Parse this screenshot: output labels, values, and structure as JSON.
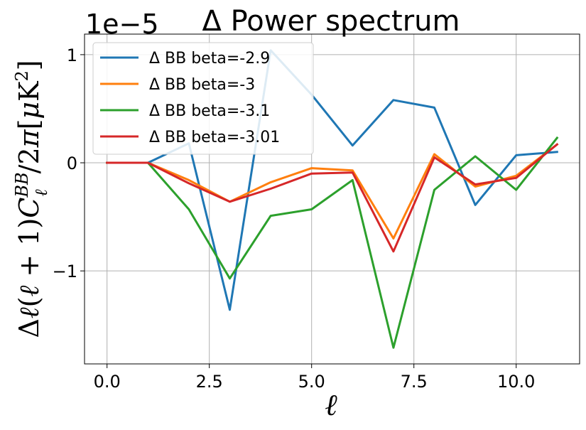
{
  "chart_data": {
    "type": "line",
    "title": "Δ Power spectrum",
    "xlabel": "ℓ",
    "ylabel": "Δℓ(ℓ + 1)C_ℓ^BB/2π[μK²]",
    "offset_text": "1e−5",
    "xlim": [
      -0.55,
      11.55
    ],
    "ylim": [
      -1.86,
      1.19
    ],
    "y_scale_exponent": -5,
    "x_ticks": [
      0.0,
      2.5,
      5.0,
      7.5,
      10.0
    ],
    "x_tick_labels": [
      "0.0",
      "2.5",
      "5.0",
      "7.5",
      "10.0"
    ],
    "y_ticks": [
      -1,
      0,
      1
    ],
    "y_tick_labels": [
      "−1",
      "0",
      "1"
    ],
    "grid": true,
    "legend_position": "upper-left",
    "x": [
      0,
      1,
      2,
      3,
      4,
      5,
      6,
      7,
      8,
      9,
      10,
      11
    ],
    "series": [
      {
        "name": "Δ BB beta=-2.9",
        "color": "#1f77b4",
        "values": [
          0.0,
          0.0,
          0.18,
          -1.36,
          1.04,
          0.63,
          0.16,
          0.58,
          0.51,
          -0.39,
          0.07,
          0.1
        ]
      },
      {
        "name": "Δ BB beta=-3",
        "color": "#ff7f0e",
        "values": [
          0.0,
          0.0,
          -0.16,
          -0.36,
          -0.18,
          -0.05,
          -0.07,
          -0.7,
          0.08,
          -0.22,
          -0.12,
          0.17
        ]
      },
      {
        "name": "Δ BB beta=-3.1",
        "color": "#2ca02c",
        "values": [
          0.0,
          0.0,
          -0.43,
          -1.07,
          -0.49,
          -0.43,
          -0.16,
          -1.71,
          -0.25,
          0.06,
          -0.25,
          0.23
        ]
      },
      {
        "name": "Δ BB beta=-3.01",
        "color": "#d62728",
        "values": [
          0.0,
          0.0,
          -0.19,
          -0.36,
          -0.24,
          -0.1,
          -0.09,
          -0.82,
          0.05,
          -0.2,
          -0.14,
          0.17
        ]
      }
    ]
  }
}
